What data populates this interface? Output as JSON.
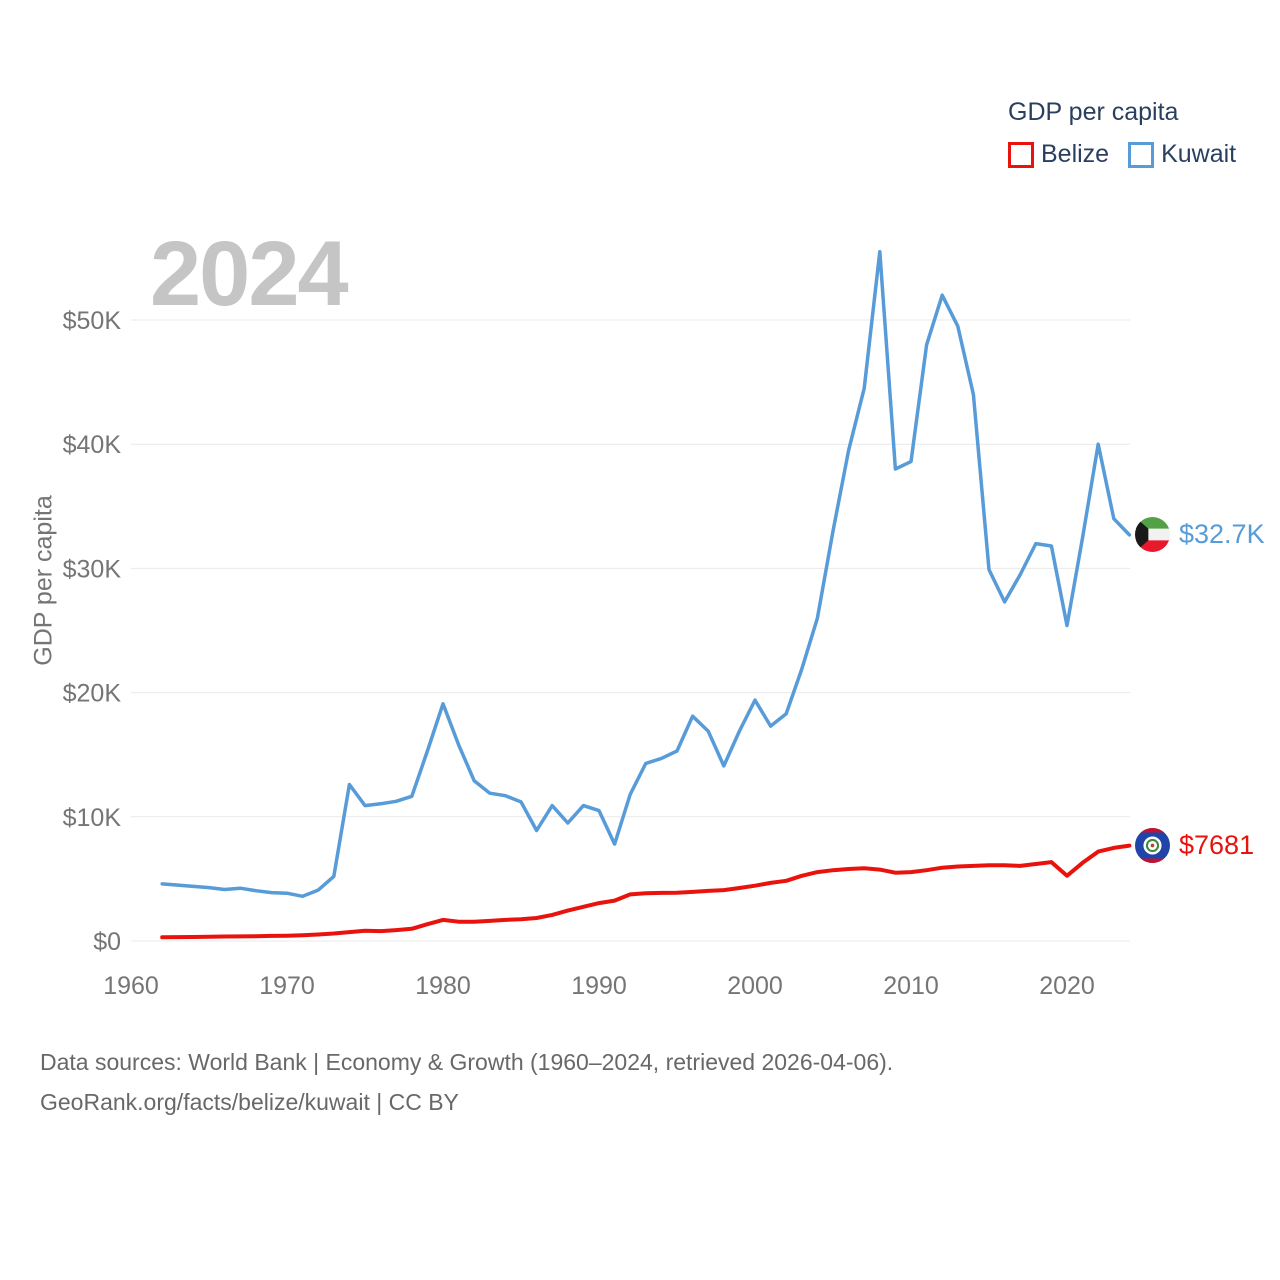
{
  "legend": {
    "title": "GDP per capita",
    "items": [
      {
        "label": "Belize"
      },
      {
        "label": "Kuwait"
      }
    ]
  },
  "footer": {
    "line1": "Data sources: World Bank | Economy & Growth (1960–2024, retrieved 2026-04-06).",
    "line2": "GeoRank.org/facts/belize/kuwait | CC BY"
  },
  "chart_data": {
    "type": "line",
    "title": "GDP per capita",
    "watermark_year": "2024",
    "ylabel": "GDP per capita",
    "xlabel": "",
    "legend_position": "top-right",
    "grid": "horizontal",
    "xlim": [
      1960,
      2024
    ],
    "ylim": [
      0,
      56000
    ],
    "x_ticks": {
      "values": [
        1960,
        1970,
        1980,
        1990,
        2000,
        2010,
        2020
      ],
      "labels": [
        "1960",
        "1970",
        "1980",
        "1990",
        "2000",
        "2010",
        "2020"
      ]
    },
    "y_ticks": {
      "values": [
        0,
        10000,
        20000,
        30000,
        40000,
        50000
      ],
      "labels": [
        "$0",
        "$10K",
        "$20K",
        "$30K",
        "$40K",
        "$50K"
      ]
    },
    "x": [
      1962,
      1963,
      1964,
      1965,
      1966,
      1967,
      1968,
      1969,
      1970,
      1971,
      1972,
      1973,
      1974,
      1975,
      1976,
      1977,
      1978,
      1979,
      1980,
      1981,
      1982,
      1983,
      1984,
      1985,
      1986,
      1987,
      1988,
      1989,
      1990,
      1991,
      1992,
      1993,
      1994,
      1995,
      1996,
      1997,
      1998,
      1999,
      2000,
      2001,
      2002,
      2003,
      2004,
      2005,
      2006,
      2007,
      2008,
      2009,
      2010,
      2011,
      2012,
      2013,
      2014,
      2015,
      2016,
      2017,
      2018,
      2019,
      2020,
      2021,
      2022,
      2023,
      2024
    ],
    "series": [
      {
        "name": "Belize",
        "color": "#e8130d",
        "end_label": "$7681",
        "end_value": 7681,
        "values": [
          300,
          310,
          320,
          340,
          360,
          370,
          390,
          410,
          430,
          470,
          520,
          600,
          720,
          820,
          800,
          880,
          980,
          1350,
          1700,
          1550,
          1550,
          1620,
          1700,
          1750,
          1850,
          2100,
          2450,
          2750,
          3050,
          3250,
          3750,
          3850,
          3870,
          3880,
          3950,
          4030,
          4100,
          4270,
          4450,
          4680,
          4850,
          5250,
          5550,
          5700,
          5800,
          5850,
          5750,
          5500,
          5550,
          5700,
          5900,
          6000,
          6050,
          6100,
          6100,
          6050,
          6200,
          6350,
          5250,
          6300,
          7200,
          7500,
          7681
        ]
      },
      {
        "name": "Kuwait",
        "color": "#579bd9",
        "end_label": "$32.7K",
        "end_value": 32700,
        "values": [
          4600,
          4500,
          4400,
          4300,
          4150,
          4250,
          4050,
          3900,
          3850,
          3600,
          4100,
          5200,
          12600,
          10900,
          11050,
          11250,
          11650,
          15300,
          19100,
          15800,
          12900,
          11900,
          11700,
          11200,
          8900,
          10900,
          9500,
          10900,
          10500,
          7800,
          11800,
          14300,
          14700,
          15300,
          18100,
          16900,
          14100,
          16900,
          19400,
          17300,
          18300,
          21900,
          26000,
          33000,
          39500,
          44500,
          55500,
          38000,
          38600,
          48000,
          52000,
          49500,
          44000,
          29900,
          27300,
          29500,
          32000,
          31800,
          25400,
          32500,
          40000,
          34000,
          32700
        ]
      }
    ]
  }
}
